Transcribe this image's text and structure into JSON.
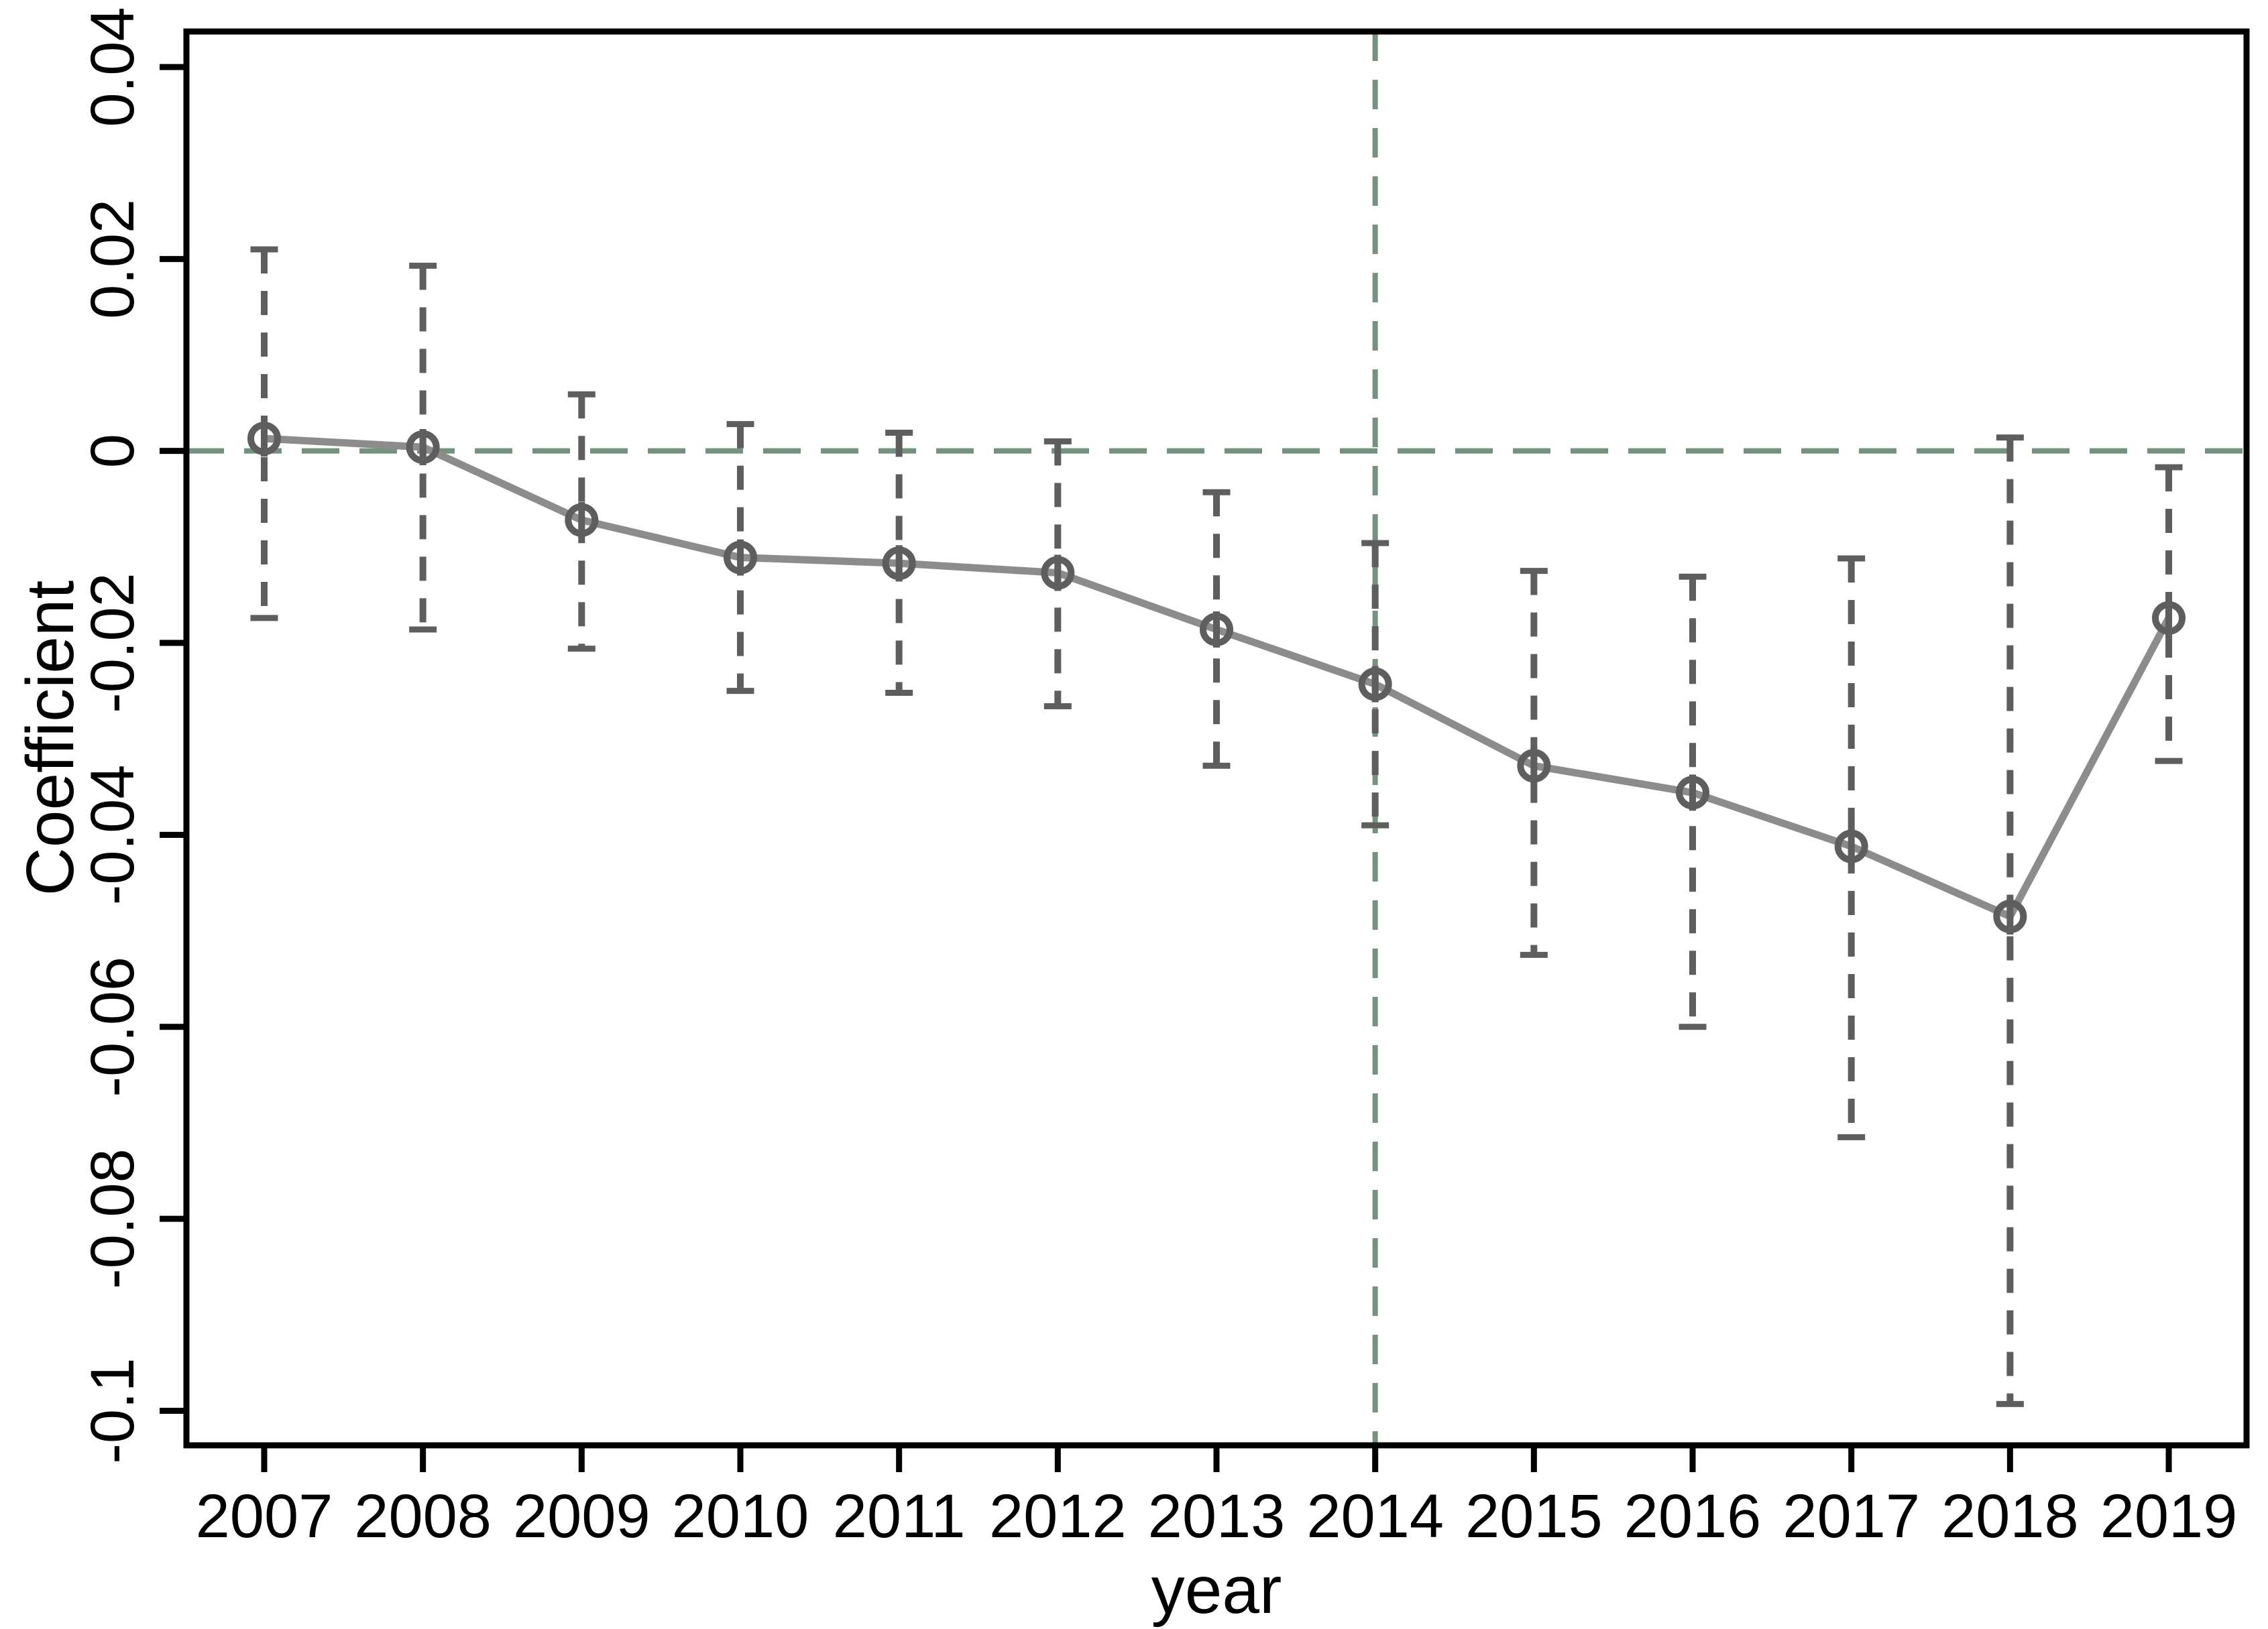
{
  "chart_data": {
    "type": "line",
    "title": "",
    "xlabel": "year",
    "ylabel": "Coefficient",
    "categories": [
      2007,
      2008,
      2009,
      2010,
      2011,
      2012,
      2013,
      2014,
      2015,
      2016,
      2017,
      2018,
      2019
    ],
    "series": [
      {
        "name": "coefficient",
        "values": [
          0.0013,
          0.0004,
          -0.0072,
          -0.0111,
          -0.0117,
          -0.0127,
          -0.0186,
          -0.0243,
          -0.0328,
          -0.0356,
          -0.0412,
          -0.0485,
          -0.0174
        ]
      },
      {
        "name": "ci_lower",
        "values": [
          -0.0174,
          -0.0186,
          -0.0206,
          -0.025,
          -0.0252,
          -0.0266,
          -0.0328,
          -0.039,
          -0.0525,
          -0.06,
          -0.0715,
          -0.0993,
          -0.0323
        ]
      },
      {
        "name": "ci_upper",
        "values": [
          0.021,
          0.0193,
          0.0059,
          0.0028,
          0.0019,
          0.001,
          -0.0043,
          -0.0096,
          -0.0125,
          -0.0131,
          -0.0112,
          0.0014,
          -0.0017
        ]
      }
    ],
    "x_tick_labels": [
      "2007",
      "2008",
      "2009",
      "2010",
      "2011",
      "2012",
      "2013",
      "2014",
      "2015",
      "2016",
      "2017",
      "2018",
      "2019"
    ],
    "y_ticks": [
      {
        "value": 0.04,
        "label": "0.04"
      },
      {
        "value": 0.02,
        "label": "0.02"
      },
      {
        "value": 0,
        "label": "0"
      },
      {
        "value": -0.02,
        "label": "-0.02"
      },
      {
        "value": -0.04,
        "label": "-0.04"
      },
      {
        "value": -0.06,
        "label": "-0.06"
      },
      {
        "value": -0.08,
        "label": "-0.08"
      },
      {
        "value": -0.1,
        "label": "-0.1"
      }
    ],
    "ylim": [
      -0.1036,
      0.0437
    ],
    "xlim": [
      2006.51,
      2019.49
    ],
    "grid": false,
    "legend": false,
    "reference_lines": {
      "horizontal_y": 0,
      "vertical_x": 2014
    },
    "colors": {
      "line": "#8c8c8c",
      "marker": "#5e5e5e",
      "ci": "#5e5e5e",
      "reference": "#75927f",
      "axis": "#000000",
      "background": "#ffffff"
    }
  }
}
